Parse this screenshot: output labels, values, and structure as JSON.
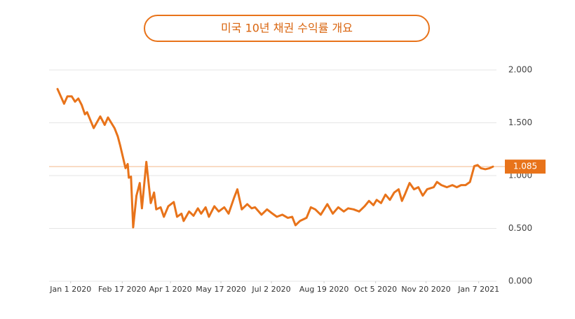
{
  "chart_data": {
    "type": "line",
    "title": "미국 10년 채권 수익률 개요",
    "color": "#e8731a",
    "x": [
      "2019-12-20",
      "2019-12-26",
      "2019-12-29",
      "2020-01-02",
      "2020-01-05",
      "2020-01-08",
      "2020-01-11",
      "2020-01-14",
      "2020-01-16",
      "2020-01-22",
      "2020-01-28",
      "2020-02-01",
      "2020-02-04",
      "2020-02-10",
      "2020-02-13",
      "2020-02-15",
      "2020-02-20",
      "2020-02-22",
      "2020-02-23",
      "2020-02-25",
      "2020-02-27",
      "2020-03-01",
      "2020-03-04",
      "2020-03-06",
      "2020-03-10",
      "2020-03-14",
      "2020-03-17",
      "2020-03-19",
      "2020-03-23",
      "2020-03-26",
      "2020-03-30",
      "2020-04-04",
      "2020-04-07",
      "2020-04-11",
      "2020-04-13",
      "2020-04-18",
      "2020-04-22",
      "2020-04-26",
      "2020-04-29",
      "2020-05-03",
      "2020-05-06",
      "2020-05-11",
      "2020-05-15",
      "2020-05-20",
      "2020-05-24",
      "2020-05-29",
      "2020-06-01",
      "2020-06-05",
      "2020-06-10",
      "2020-06-14",
      "2020-06-17",
      "2020-06-23",
      "2020-06-28",
      "2020-07-03",
      "2020-07-07",
      "2020-07-12",
      "2020-07-17",
      "2020-07-21",
      "2020-07-24",
      "2020-07-28",
      "2020-08-03",
      "2020-08-07",
      "2020-08-11",
      "2020-08-16",
      "2020-08-22",
      "2020-08-27",
      "2020-09-01",
      "2020-09-06",
      "2020-09-10",
      "2020-09-15",
      "2020-09-20",
      "2020-09-25",
      "2020-09-29",
      "2020-10-03",
      "2020-10-06",
      "2020-10-10",
      "2020-10-14",
      "2020-10-18",
      "2020-10-22",
      "2020-10-26",
      "2020-10-29",
      "2020-11-01",
      "2020-11-05",
      "2020-11-09",
      "2020-11-13",
      "2020-11-17",
      "2020-11-21",
      "2020-11-27",
      "2020-11-30",
      "2020-12-04",
      "2020-12-09",
      "2020-12-14",
      "2020-12-18",
      "2020-12-22",
      "2020-12-26",
      "2020-12-30",
      "2021-01-03",
      "2021-01-06",
      "2021-01-09",
      "2021-01-13",
      "2021-01-17",
      "2021-01-20"
    ],
    "values": [
      1.82,
      1.68,
      1.75,
      1.75,
      1.7,
      1.73,
      1.67,
      1.58,
      1.6,
      1.45,
      1.56,
      1.48,
      1.55,
      1.45,
      1.37,
      1.29,
      1.07,
      1.11,
      0.98,
      0.99,
      0.51,
      0.81,
      0.93,
      0.69,
      1.13,
      0.74,
      0.84,
      0.68,
      0.7,
      0.61,
      0.71,
      0.75,
      0.61,
      0.64,
      0.57,
      0.66,
      0.62,
      0.69,
      0.64,
      0.7,
      0.61,
      0.71,
      0.66,
      0.7,
      0.64,
      0.79,
      0.87,
      0.68,
      0.73,
      0.69,
      0.7,
      0.63,
      0.68,
      0.64,
      0.61,
      0.63,
      0.6,
      0.61,
      0.53,
      0.57,
      0.6,
      0.7,
      0.68,
      0.63,
      0.73,
      0.64,
      0.7,
      0.66,
      0.69,
      0.68,
      0.66,
      0.71,
      0.76,
      0.72,
      0.77,
      0.74,
      0.82,
      0.77,
      0.84,
      0.87,
      0.76,
      0.83,
      0.93,
      0.87,
      0.89,
      0.81,
      0.87,
      0.89,
      0.94,
      0.91,
      0.89,
      0.91,
      0.89,
      0.91,
      0.91,
      0.94,
      1.09,
      1.1,
      1.07,
      1.06,
      1.07,
      1.085
    ],
    "xlim": [
      "2019-12-20",
      "2021-01-20"
    ],
    "xticks": [
      {
        "value": "2020-01-01",
        "label": "Jan 1 2020"
      },
      {
        "value": "2020-02-17",
        "label": "Feb 17 2020"
      },
      {
        "value": "2020-04-01",
        "label": "Apr 1 2020"
      },
      {
        "value": "2020-05-17",
        "label": "May 17 2020"
      },
      {
        "value": "2020-07-02",
        "label": "Jul 2 2020"
      },
      {
        "value": "2020-08-19",
        "label": "Aug 19 2020"
      },
      {
        "value": "2020-10-05",
        "label": "Oct 5 2020"
      },
      {
        "value": "2020-11-20",
        "label": "Nov 20 2020"
      },
      {
        "value": "2021-01-07",
        "label": "Jan 7 2021"
      }
    ],
    "ylim": [
      0,
      2
    ],
    "yticks": [
      {
        "value": 2,
        "label": "2.000"
      },
      {
        "value": 1.5,
        "label": "1.500"
      },
      {
        "value": 1,
        "label": "1.000"
      },
      {
        "value": 0.5,
        "label": "0.500"
      },
      {
        "value": 0,
        "label": "0.000"
      }
    ],
    "current": {
      "value": 1.085,
      "label": "1.085"
    },
    "grid": true
  }
}
